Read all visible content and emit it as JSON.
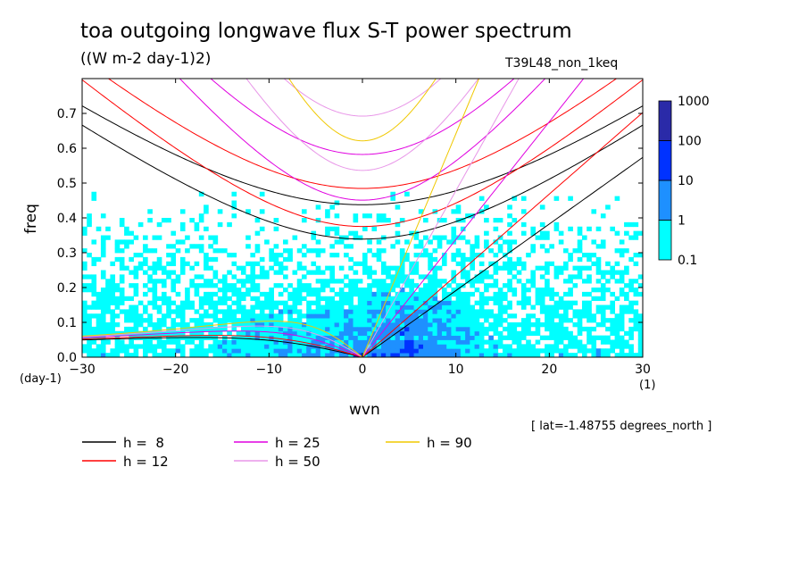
{
  "title": "toa outgoing longwave flux S-T power spectrum",
  "units_label": "((W m-2 day-1)2)",
  "run_label": "T39L48_non_1keq",
  "lat_note": "[ lat=-1.48755 degrees_north ]",
  "colors": {
    "level_0": "#ffffff",
    "level_1": "#00ffff",
    "level_2": "#1e90ff",
    "level_3": "#0032ff",
    "level_4": "#2a2aa8",
    "level_5": "#4b00c8",
    "h8": "#000000",
    "h12": "#ff0000",
    "h25": "#e000e0",
    "h50": "#e896e8",
    "h90": "#f0c800"
  },
  "chart_data": {
    "type": "heatmap",
    "title": "toa outgoing longwave flux S-T power spectrum",
    "xlabel": "wvn",
    "ylabel": "freq",
    "x_unit": "(1)",
    "y_unit": "(day-1)",
    "xlim": [
      -30,
      30
    ],
    "ylim": [
      0,
      0.8
    ],
    "x_ticks": [
      -30,
      -20,
      -10,
      0,
      10,
      20,
      30
    ],
    "x_tick_labels": [
      "−30",
      "−20",
      "−10",
      "0",
      "10",
      "20",
      "30"
    ],
    "y_ticks": [
      0,
      0.1,
      0.2,
      0.3,
      0.4,
      0.5,
      0.6,
      0.7
    ],
    "y_tick_labels": [
      "0.0",
      "0.1",
      "0.2",
      "0.3",
      "0.4",
      "0.5",
      "0.6",
      "0.7"
    ],
    "colorbar": {
      "levels": [
        0.1,
        1,
        10,
        100,
        1000
      ],
      "level_labels": [
        "0.1",
        "1",
        "10",
        "100",
        "1000"
      ]
    },
    "dispersion_curves": [
      {
        "name": "h =  8",
        "h": 8,
        "color_key": "h8"
      },
      {
        "name": "h = 12",
        "h": 12,
        "color_key": "h12"
      },
      {
        "name": "h = 25",
        "h": 25,
        "color_key": "h25"
      },
      {
        "name": "h = 50",
        "h": 50,
        "color_key": "h50"
      },
      {
        "name": "h = 90",
        "h": 90,
        "color_key": "h90"
      }
    ],
    "legend_placement": "bottom-left"
  }
}
